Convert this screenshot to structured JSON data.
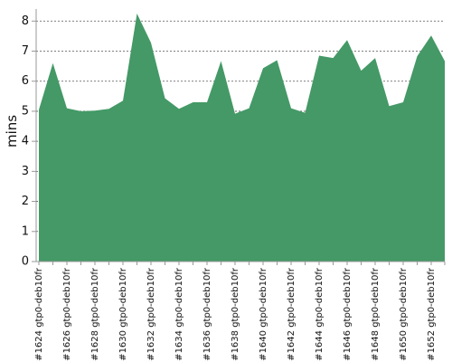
{
  "chart_data": {
    "type": "area",
    "ylabel": "mins",
    "color": "#449966",
    "categories": [
      "#1624 gtp0-deb10fr",
      null,
      "#1626 gtp0-deb10fr",
      null,
      "#1628 gtp0-deb10fr",
      null,
      "#1630 gtp0-deb10fr",
      null,
      "#1632 gtp0-deb10fr",
      null,
      "#1634 gtp0-deb10fr",
      null,
      "#1636 gtp0-deb10fr",
      null,
      "#1638 gtp0-deb10fr",
      null,
      "#1640 gtp0-deb10fr",
      null,
      "#1642 gtp0-deb10fr",
      null,
      "#1644 gtp0-deb10fr",
      null,
      "#1646 gtp0-deb10fr",
      null,
      "#1648 gtp0-deb10fr",
      null,
      "#1650 gtp0-deb10fr",
      null,
      "#1652 gtp0-deb10fr",
      null
    ],
    "values": [
      5.05,
      6.6,
      5.1,
      5.0,
      5.02,
      5.08,
      5.35,
      8.25,
      7.28,
      5.43,
      5.08,
      5.3,
      5.3,
      6.67,
      4.92,
      5.1,
      6.43,
      6.7,
      5.1,
      4.95,
      6.85,
      6.77,
      7.37,
      6.35,
      6.77,
      5.17,
      5.3,
      6.83,
      7.52,
      6.67
    ],
    "ylim": [
      0,
      8.4
    ],
    "yticks": [
      0,
      1,
      2,
      3,
      4,
      5,
      6,
      7,
      8
    ],
    "grid": true
  }
}
